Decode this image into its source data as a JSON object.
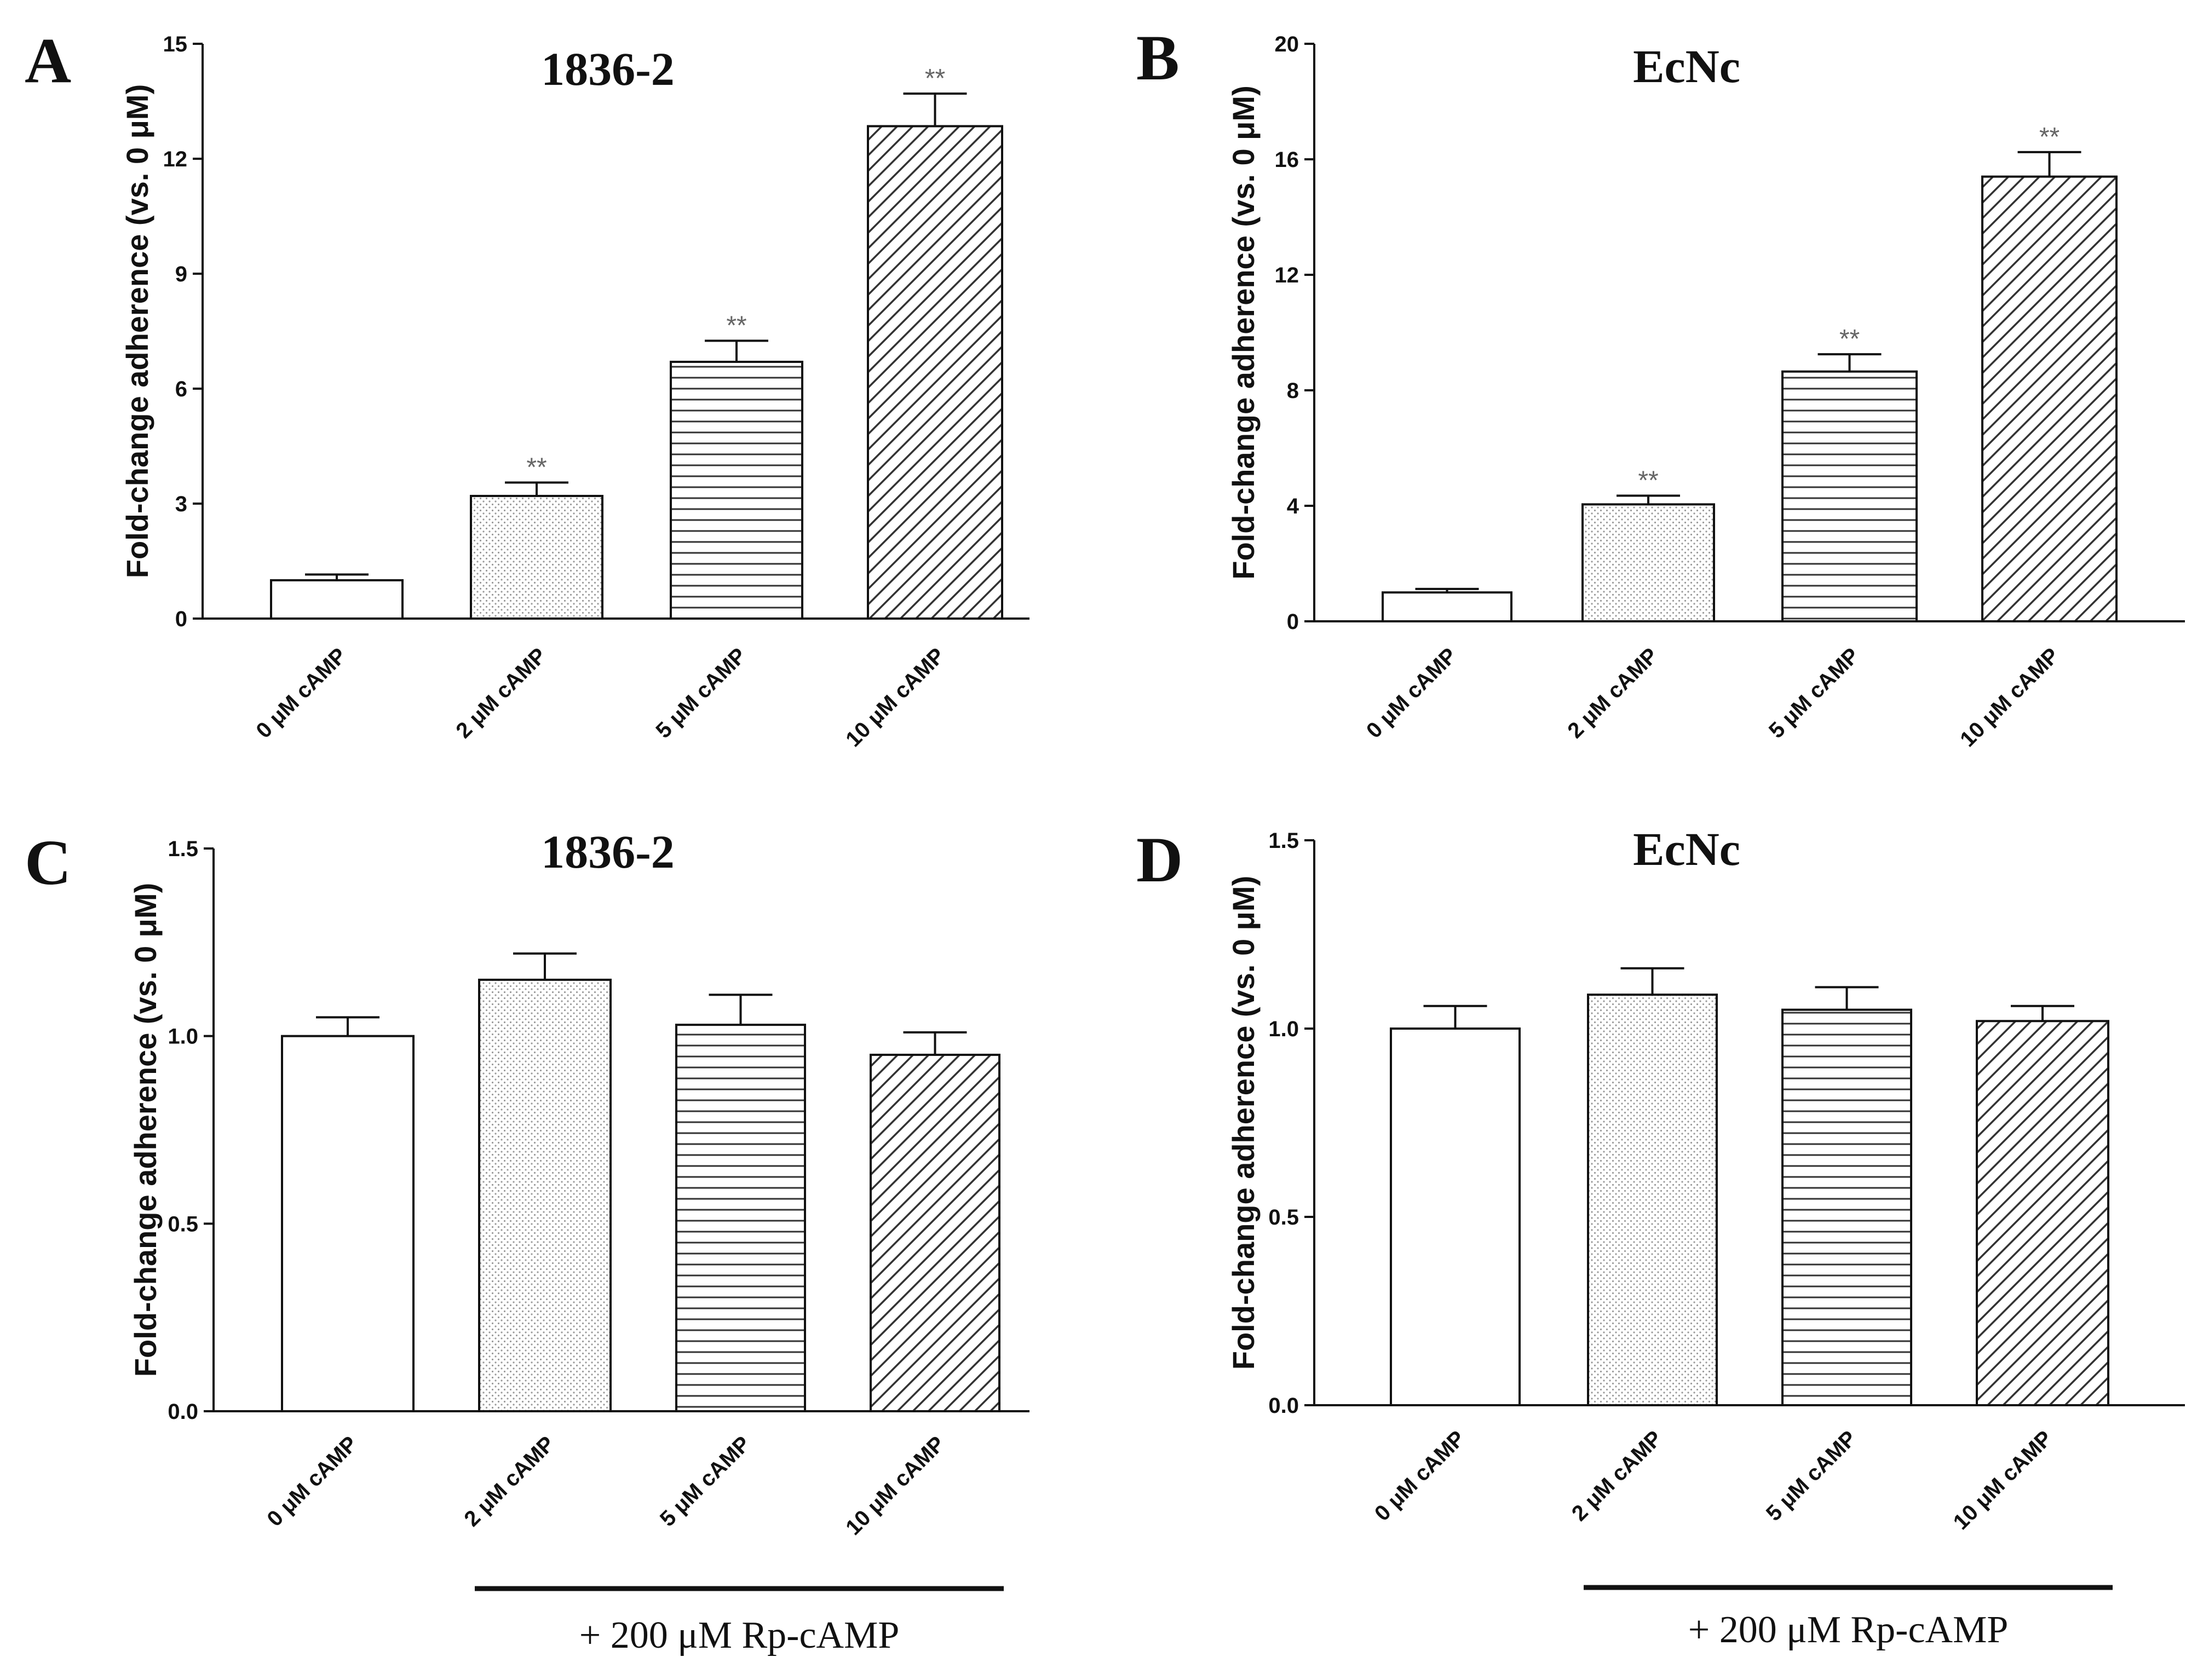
{
  "figure": {
    "treatment_label": "+ 200 μM Rp-cAMP"
  },
  "chart_data": [
    {
      "panel": "A",
      "type": "bar",
      "title": "1836-2",
      "ylabel": "Fold-change adherence  (vs. 0 μM)",
      "xlabel": "",
      "categories": [
        "0 μM cAMP",
        "2 μM cAMP",
        "5 μM cAMP",
        "10 μM cAMP"
      ],
      "values": [
        1.0,
        3.2,
        6.7,
        12.85
      ],
      "errors": [
        0.15,
        0.35,
        0.55,
        0.85
      ],
      "significance": [
        "",
        "**",
        "**",
        "**"
      ],
      "patterns": [
        "blank",
        "dots",
        "hlines",
        "diag"
      ],
      "ylim": [
        0,
        15
      ],
      "yticks": [
        "0",
        "3",
        "6",
        "9",
        "12",
        "15"
      ],
      "treatment": null
    },
    {
      "panel": "B",
      "type": "bar",
      "title": "EcNc",
      "ylabel": "Fold-change  adherence  (vs. 0 μM)",
      "xlabel": "",
      "categories": [
        "0 μM cAMP",
        "2 μM cAMP",
        "5 μM cAMP",
        "10 μM cAMP"
      ],
      "values": [
        1.0,
        4.05,
        8.65,
        15.4
      ],
      "errors": [
        0.12,
        0.3,
        0.6,
        0.85
      ],
      "significance": [
        "",
        "**",
        "**",
        "**"
      ],
      "patterns": [
        "blank",
        "dots",
        "hlines",
        "diag"
      ],
      "ylim": [
        0,
        20
      ],
      "yticks": [
        "0",
        "4",
        "8",
        "12",
        "16",
        "20"
      ],
      "treatment": null
    },
    {
      "panel": "C",
      "type": "bar",
      "title": "1836-2",
      "ylabel": "Fold-change adherence (vs. 0 μM)",
      "xlabel": "",
      "categories": [
        "0 μM cAMP",
        "2 μM cAMP",
        "5 μM cAMP",
        "10 μM cAMP"
      ],
      "values": [
        1.0,
        1.15,
        1.03,
        0.95
      ],
      "errors": [
        0.05,
        0.07,
        0.08,
        0.06
      ],
      "significance": [
        "",
        "",
        "",
        ""
      ],
      "patterns": [
        "blank",
        "dots",
        "hlines",
        "diag"
      ],
      "ylim": [
        0,
        1.5
      ],
      "yticks": [
        "0.0",
        "0.5",
        "1.0",
        "1.5"
      ],
      "treatment": "+ 200 μM Rp-cAMP"
    },
    {
      "panel": "D",
      "type": "bar",
      "title": "EcNc",
      "ylabel": "Fold-change adherence (vs. 0 μM)",
      "xlabel": "",
      "categories": [
        "0 μM cAMP",
        "2 μM cAMP",
        "5 μM cAMP",
        "10 μM cAMP"
      ],
      "values": [
        1.0,
        1.09,
        1.05,
        1.02
      ],
      "errors": [
        0.06,
        0.07,
        0.06,
        0.04
      ],
      "significance": [
        "",
        "",
        "",
        ""
      ],
      "patterns": [
        "blank",
        "dots",
        "hlines",
        "diag"
      ],
      "ylim": [
        0,
        1.5
      ],
      "yticks": [
        "0.0",
        "0.5",
        "1.0",
        "1.5"
      ],
      "treatment": "+ 200 μM Rp-cAMP"
    }
  ]
}
